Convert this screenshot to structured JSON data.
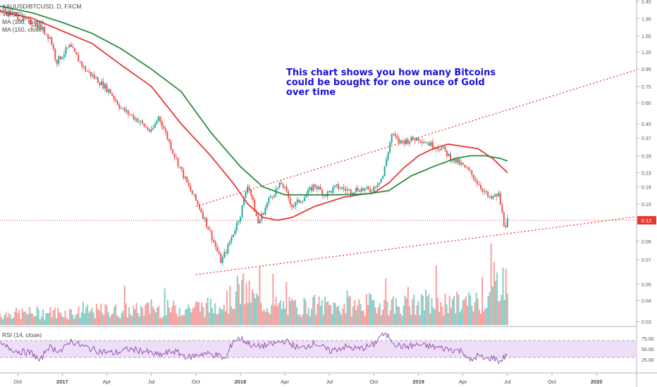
{
  "colors": {
    "up": "#26a69a",
    "down": "#ef5350",
    "ma100": "#e53935",
    "ma150": "#2e8b3e",
    "rsi": "#8e44ad",
    "rsi_band": "#ead9f7",
    "trend": "#e53935",
    "annotation": "#1a13d8",
    "price_line": "#e53935"
  },
  "legend": {
    "symbol": "XAUUSD/BTCUSD, D, FXCM",
    "vol": "Vol (20)",
    "ma100": "MA (100, close)",
    "ma150": "MA (150, close)"
  },
  "annotation": {
    "line1": "This chart shows you how many Bitcoins",
    "line2": "could be bought for one ounce of Gold",
    "line3": "over time"
  },
  "rsi_label": "RSI (14, close)",
  "chart_data": {
    "type": "line",
    "title": "XAUUSD/BTCUSD, D, FXCM",
    "x_ticks": [
      "Oct",
      "2017",
      "Apr",
      "Jul",
      "Oct",
      "2018",
      "Apr",
      "Jul",
      "Oct",
      "2019",
      "Apr",
      "Jul",
      "Oct",
      "2020"
    ],
    "x_tick_months": [
      0,
      3,
      6,
      9,
      12,
      15,
      18,
      21,
      24,
      27,
      30,
      33,
      36,
      39
    ],
    "x_range_months": [
      -1.2,
      41.7
    ],
    "y_scale": "log",
    "y_ticks": [
      2.4,
      1.9,
      1.5,
      1.2,
      0.95,
      0.75,
      0.6,
      0.45,
      0.37,
      0.29,
      0.23,
      0.19,
      0.15,
      0.12,
      0.09,
      0.07,
      0.05,
      0.04,
      0.03
    ],
    "last_price_label": "0.12",
    "last_price": 0.12,
    "series": [
      {
        "name": "XAUUSD/BTCUSD",
        "months": [
          -1.2,
          -0.5,
          0.5,
          1.5,
          2.2,
          2.6,
          3.5,
          4.5,
          5.5,
          6.2,
          7.0,
          8.0,
          9.0,
          9.5,
          10.5,
          11.5,
          12.3,
          13.0,
          13.7,
          14.2,
          14.5,
          15.0,
          15.5,
          16.2,
          17.0,
          17.8,
          18.5,
          19.3,
          20.0,
          20.7,
          21.5,
          22.3,
          23.0,
          23.8,
          24.6,
          25.2,
          25.7,
          26.4,
          27.0,
          27.8,
          28.6,
          29.2,
          29.8,
          30.5,
          31.2,
          31.8,
          32.4,
          32.8,
          33.0
        ],
        "values": [
          2.15,
          2.05,
          1.85,
          1.7,
          1.45,
          1.05,
          1.3,
          0.95,
          0.8,
          0.7,
          0.55,
          0.48,
          0.4,
          0.5,
          0.3,
          0.19,
          0.14,
          0.1,
          0.068,
          0.085,
          0.1,
          0.13,
          0.2,
          0.115,
          0.165,
          0.2,
          0.145,
          0.165,
          0.195,
          0.17,
          0.19,
          0.18,
          0.185,
          0.18,
          0.22,
          0.39,
          0.35,
          0.36,
          0.37,
          0.34,
          0.32,
          0.28,
          0.26,
          0.23,
          0.19,
          0.16,
          0.17,
          0.11,
          0.12
        ]
      },
      {
        "name": "MA (100, close)",
        "months": [
          -1.2,
          1.0,
          3.0,
          5.0,
          7.0,
          9.0,
          11.0,
          13.0,
          14.5,
          15.5,
          16.5,
          17.5,
          18.5,
          20.0,
          22.0,
          24.0,
          25.0,
          26.0,
          27.0,
          28.0,
          29.0,
          30.0,
          31.0,
          32.0,
          33.0
        ],
        "values": [
          2.1,
          1.9,
          1.6,
          1.35,
          1.0,
          0.75,
          0.45,
          0.29,
          0.2,
          0.15,
          0.125,
          0.12,
          0.125,
          0.145,
          0.165,
          0.175,
          0.2,
          0.245,
          0.29,
          0.32,
          0.34,
          0.33,
          0.32,
          0.28,
          0.23
        ]
      },
      {
        "name": "MA (150, close)",
        "months": [
          -1.2,
          1.0,
          3.0,
          5.0,
          7.0,
          9.0,
          11.0,
          13.0,
          15.0,
          16.5,
          18.0,
          19.5,
          21.5,
          23.5,
          25.0,
          26.5,
          28.0,
          29.5,
          30.5,
          31.5,
          32.5,
          33.0
        ],
        "values": [
          2.25,
          2.05,
          1.8,
          1.55,
          1.25,
          0.95,
          0.7,
          0.4,
          0.25,
          0.19,
          0.17,
          0.17,
          0.17,
          0.172,
          0.18,
          0.22,
          0.25,
          0.28,
          0.29,
          0.29,
          0.28,
          0.27
        ]
      }
    ],
    "trendlines": [
      {
        "from": [
          12.0,
          0.145
        ],
        "to": [
          41.7,
          0.94
        ]
      },
      {
        "from": [
          12.0,
          0.057
        ],
        "to": [
          41.7,
          0.126
        ]
      }
    ],
    "volume": {
      "months": [
        -1.0,
        2.0,
        4.0,
        6.0,
        7.8,
        9.0,
        10.5,
        12.0,
        13.0,
        14.3,
        15.0,
        16.0,
        17.0,
        18.5,
        20.0,
        21.5,
        23.0,
        24.5,
        25.5,
        27.0,
        28.5,
        30.0,
        31.5,
        32.2,
        32.6,
        33.0
      ],
      "values": [
        6,
        7,
        7,
        8,
        8,
        9,
        9,
        10,
        10,
        14,
        20,
        14,
        11,
        10,
        11,
        10,
        11,
        12,
        11,
        11,
        12,
        12,
        14,
        20,
        30,
        18
      ]
    },
    "rsi": {
      "upper": 70,
      "lower": 30,
      "ticks": [
        75.0,
        50.0,
        25.0
      ],
      "months": [
        -1.2,
        0.0,
        1.0,
        1.5,
        2.0,
        3.0,
        3.5,
        4.5,
        5.5,
        6.5,
        7.5,
        8.5,
        9.5,
        10.5,
        11.5,
        12.5,
        13.5,
        14.0,
        14.5,
        15.0,
        16.0,
        17.0,
        18.0,
        19.0,
        20.0,
        21.0,
        22.0,
        23.0,
        24.0,
        24.5,
        25.0,
        25.5,
        26.0,
        27.0,
        28.0,
        29.0,
        30.0,
        30.5,
        31.0,
        31.5,
        32.0,
        32.5,
        33.0
      ],
      "values": [
        60,
        45,
        40,
        20,
        55,
        45,
        70,
        55,
        45,
        40,
        50,
        45,
        35,
        45,
        30,
        40,
        35,
        25,
        70,
        75,
        55,
        60,
        70,
        50,
        65,
        45,
        55,
        50,
        60,
        85,
        80,
        60,
        55,
        60,
        55,
        50,
        45,
        20,
        35,
        25,
        30,
        20,
        40
      ]
    }
  }
}
